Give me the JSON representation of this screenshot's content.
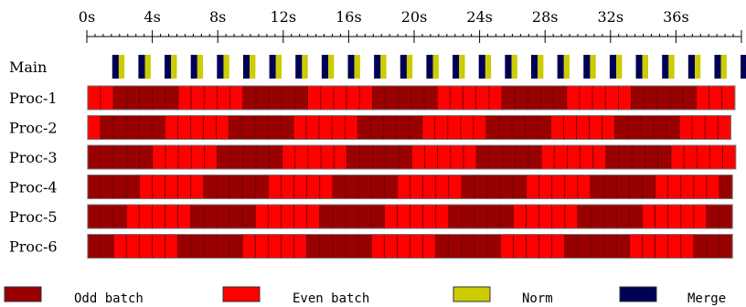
{
  "chart_data": {
    "type": "timeline",
    "title": "",
    "x_axis": {
      "unit": "s",
      "min": 0,
      "max": 40,
      "major_step": 4,
      "minor_step": 0.5,
      "tick_labels": [
        "0s",
        "4s",
        "8s",
        "12s",
        "16s",
        "20s",
        "24s",
        "28s",
        "32s",
        "36s"
      ]
    },
    "rows": [
      "Main",
      "Proc-1",
      "Proc-2",
      "Proc-3",
      "Proc-4",
      "Proc-5",
      "Proc-6"
    ],
    "main_track": {
      "row": "Main",
      "cycle_period_s": 1.6,
      "first_merge_start_s": 1.55,
      "merge_duration_s": 0.4,
      "norm_duration_s": 0.35,
      "cycles": 25
    },
    "proc_tracks": [
      {
        "row": "Proc-1",
        "start_s": 0.05,
        "end_s": 39.6,
        "batches": 50
      },
      {
        "row": "Proc-2",
        "start_s": 0.05,
        "end_s": 39.35,
        "batches": 50
      },
      {
        "row": "Proc-3",
        "start_s": 0.05,
        "end_s": 39.65,
        "batches": 50
      },
      {
        "row": "Proc-4",
        "start_s": 0.05,
        "end_s": 39.45,
        "batches": 50
      },
      {
        "row": "Proc-5",
        "start_s": 0.05,
        "end_s": 39.45,
        "batches": 50
      },
      {
        "row": "Proc-6",
        "start_s": 0.05,
        "end_s": 39.45,
        "batches": 50
      }
    ],
    "pattern_note": "batches alternate in runs; shading shows odd vs even batches",
    "legend": [
      {
        "label": "Odd batch",
        "color": "#990000"
      },
      {
        "label": "Even batch",
        "color": "#ff0000"
      },
      {
        "label": "Norm",
        "color": "#cccc00"
      },
      {
        "label": "Merge",
        "color": "#000055"
      }
    ],
    "legend_position": "bottom",
    "grid": false
  }
}
